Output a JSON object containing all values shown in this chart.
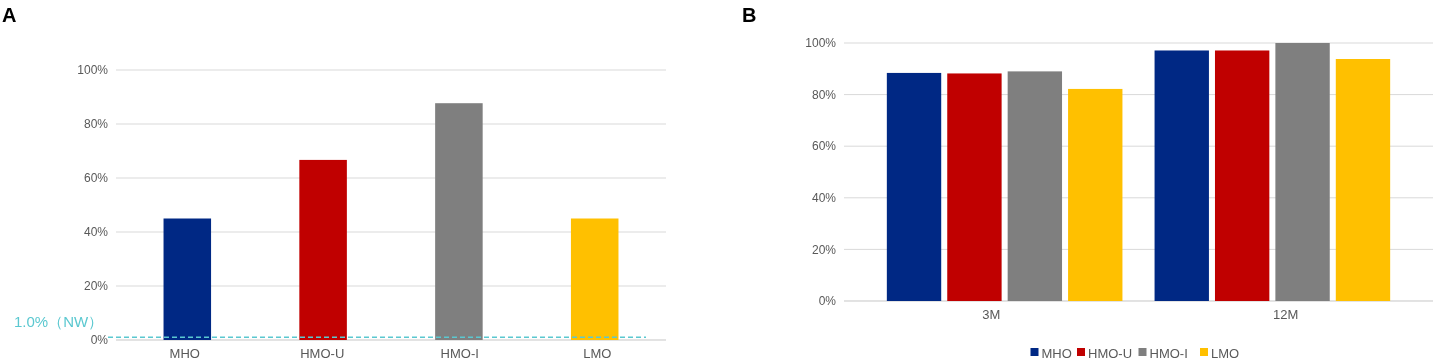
{
  "chart_data": [
    {
      "type": "bar",
      "title": "A",
      "categories": [
        "MHO",
        "HMO-U",
        "HMO-I",
        "LMO"
      ],
      "values": [
        45,
        66.7,
        87.7,
        45
      ],
      "colors": [
        "#002884",
        "#c00000",
        "#7f7f7f",
        "#ffc000"
      ],
      "ylim": [
        0,
        100
      ],
      "yticks": [
        {
          "value": 0,
          "label": "0%"
        },
        {
          "value": 20,
          "label": "20%"
        },
        {
          "value": 40,
          "label": "40%"
        },
        {
          "value": 60,
          "label": "60%"
        },
        {
          "value": 80,
          "label": "80%"
        },
        {
          "value": 100,
          "label": "100%"
        }
      ],
      "grid": "y",
      "legend": false,
      "ref_lines": [
        {
          "axis": "y",
          "value": 1.0,
          "label": "1.0%（NW）",
          "color": "#5bc8d0",
          "line_style": "dashed"
        }
      ]
    },
    {
      "type": "bar",
      "title": "B",
      "categories": [
        "3M",
        "12M"
      ],
      "series": [
        {
          "name": "MHO",
          "color": "#002884",
          "values": [
            88.4,
            97.1
          ]
        },
        {
          "name": "HMO-U",
          "color": "#c00000",
          "values": [
            88.2,
            97.1
          ]
        },
        {
          "name": "HMO-I",
          "color": "#7f7f7f",
          "values": [
            89.0,
            100
          ]
        },
        {
          "name": "LMO",
          "color": "#ffc000",
          "values": [
            82.2,
            93.8
          ]
        }
      ],
      "ylim": [
        0,
        100
      ],
      "yticks": [
        {
          "value": 0,
          "label": "0%"
        },
        {
          "value": 20,
          "label": "20%"
        },
        {
          "value": 40,
          "label": "40%"
        },
        {
          "value": 60,
          "label": "60%"
        },
        {
          "value": 80,
          "label": "80%"
        },
        {
          "value": 100,
          "label": "100%"
        }
      ],
      "grid": "y",
      "legend": "bottom"
    }
  ]
}
